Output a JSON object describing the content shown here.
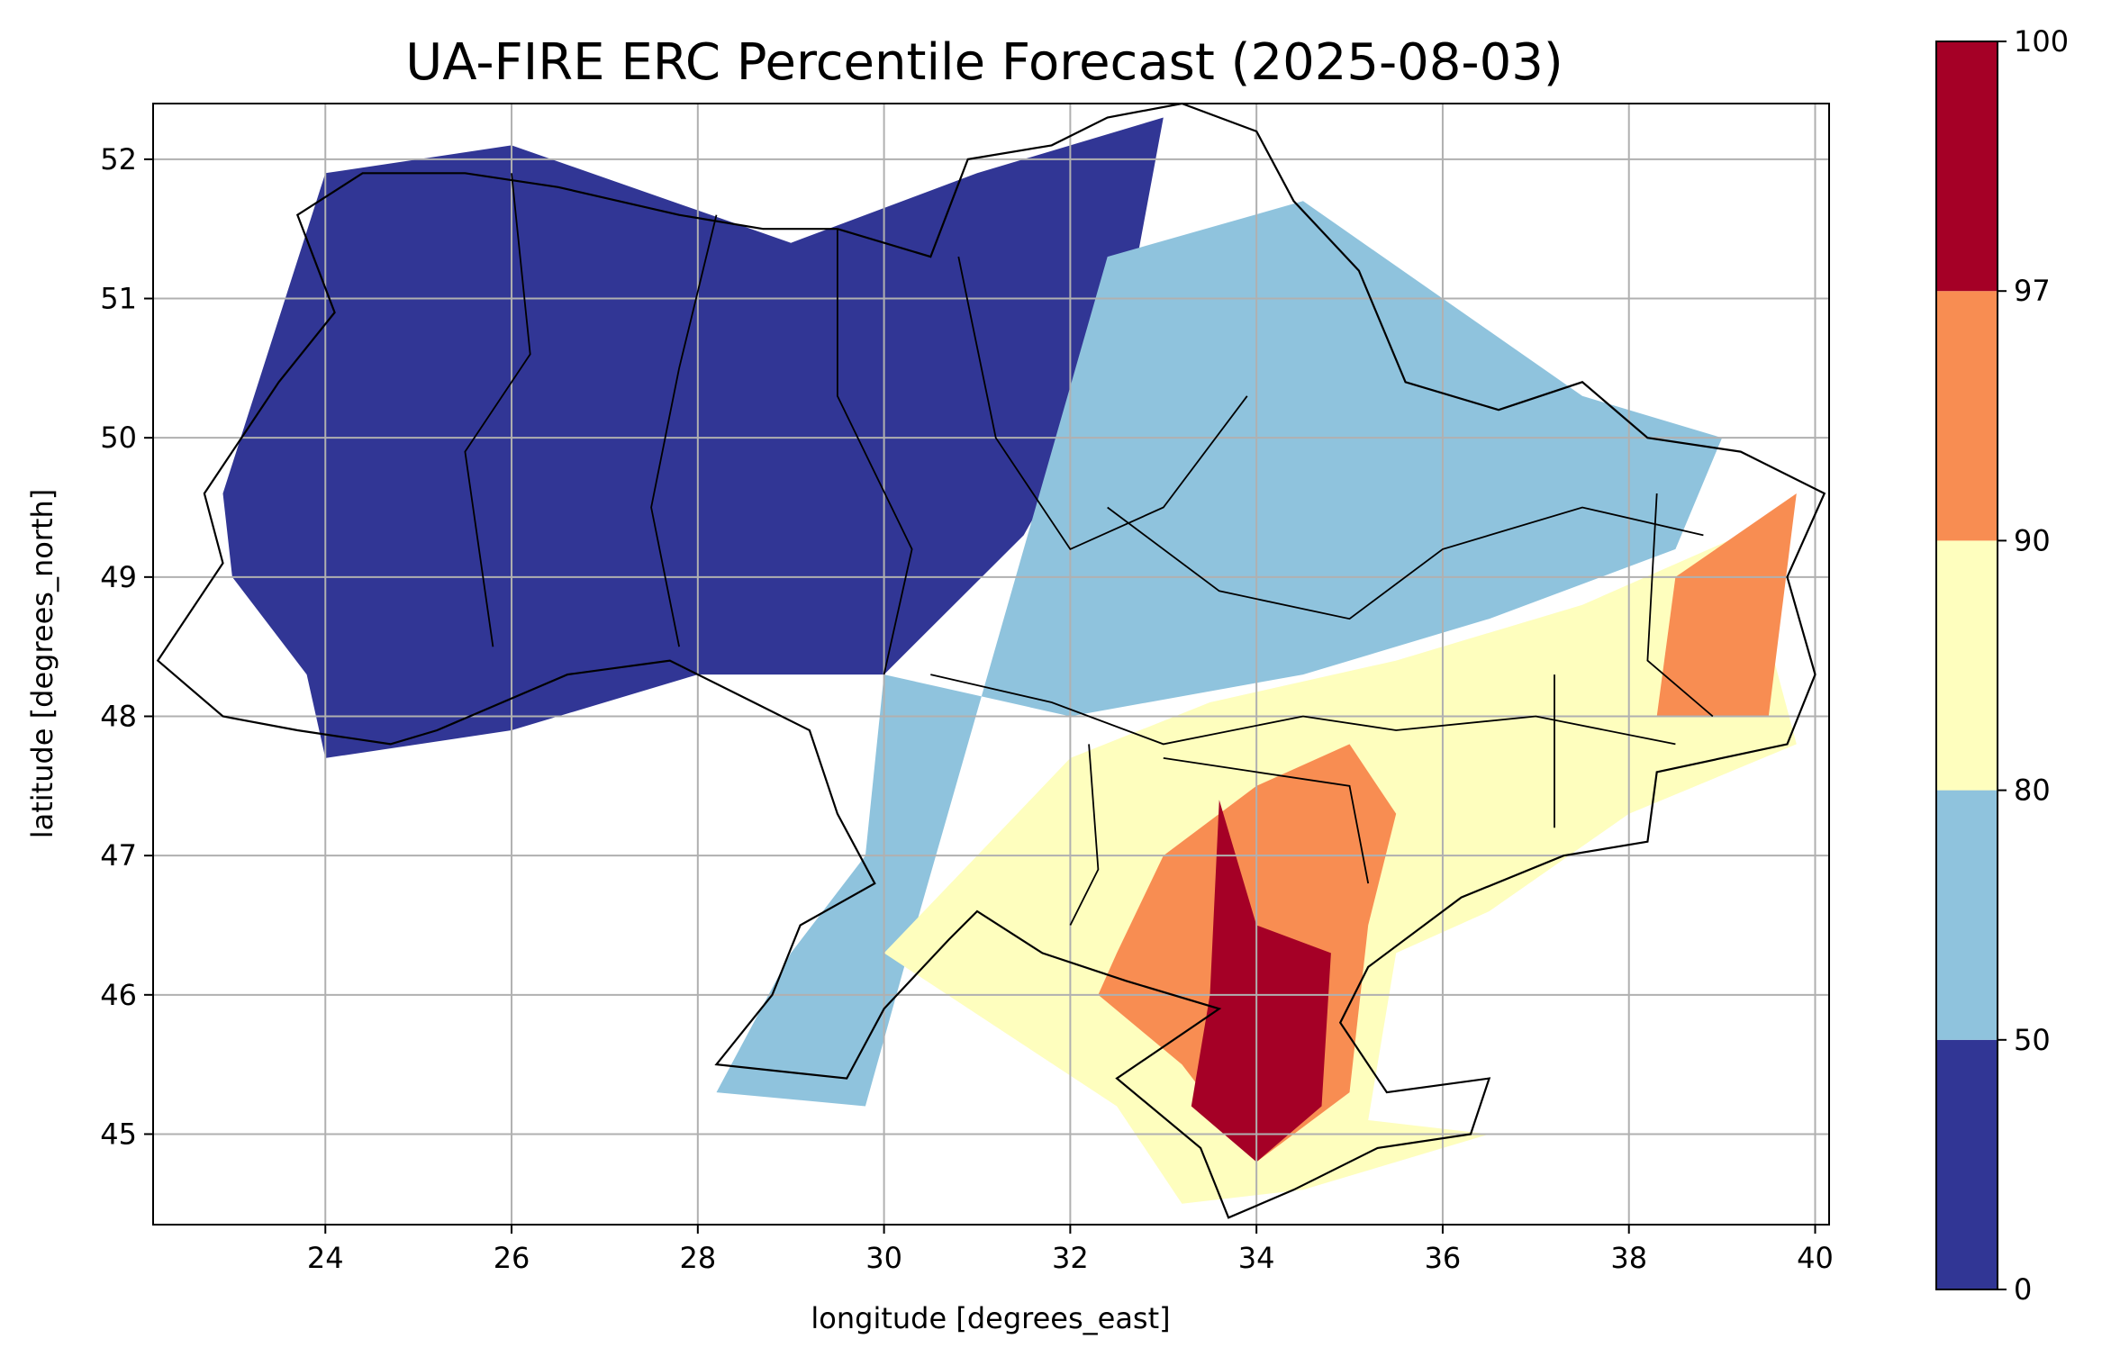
{
  "chart_data": {
    "type": "heatmap",
    "title": "UA-FIRE ERC Percentile Forecast (2025-08-03)",
    "xlabel": "longitude [degrees_east]",
    "ylabel": "latitude [degrees_north]",
    "xlim": [
      22.15,
      40.15
    ],
    "ylim": [
      44.35,
      52.4
    ],
    "xticks": [
      24,
      26,
      28,
      30,
      32,
      34,
      36,
      38,
      40
    ],
    "yticks": [
      45,
      46,
      47,
      48,
      49,
      50,
      51,
      52
    ],
    "grid": true,
    "colorbar": {
      "boundaries": [
        0,
        50,
        80,
        90,
        97,
        100
      ],
      "tick_labels": [
        "0",
        "50",
        "80",
        "90",
        "97",
        "100"
      ],
      "colors": [
        "#313695",
        "#8fc3dd",
        "#fefebe",
        "#f88d52",
        "#a50026"
      ]
    },
    "regions_by_class": [
      {
        "range": "0-50",
        "description_lon_lat": [
          [
            22.9,
            49.6
          ],
          [
            24.0,
            51.9
          ],
          [
            26.0,
            52.1
          ],
          [
            29.0,
            51.4
          ],
          [
            31.0,
            51.9
          ],
          [
            33.0,
            52.3
          ],
          [
            32.5,
            50.5
          ],
          [
            31.5,
            49.3
          ],
          [
            30.0,
            48.3
          ],
          [
            28.0,
            48.3
          ],
          [
            26.0,
            47.9
          ],
          [
            24.0,
            47.7
          ],
          [
            23.8,
            48.3
          ],
          [
            23.0,
            49.0
          ]
        ]
      },
      {
        "range": "50-80",
        "description_lon_lat": [
          [
            32.4,
            51.3
          ],
          [
            34.5,
            51.7
          ],
          [
            36.0,
            51.0
          ],
          [
            37.5,
            50.3
          ],
          [
            39.0,
            50.0
          ],
          [
            38.5,
            49.2
          ],
          [
            36.5,
            48.7
          ],
          [
            34.5,
            48.3
          ],
          [
            32.0,
            48.0
          ],
          [
            30.0,
            48.3
          ],
          [
            29.8,
            47.0
          ],
          [
            29.0,
            46.3
          ],
          [
            28.2,
            45.3
          ],
          [
            29.8,
            45.2
          ],
          [
            30.3,
            46.4
          ]
        ]
      },
      {
        "range": "80-90",
        "description_lon_lat": [
          [
            30.0,
            46.3
          ],
          [
            31.0,
            47.0
          ],
          [
            32.0,
            47.7
          ],
          [
            33.5,
            48.1
          ],
          [
            35.5,
            48.4
          ],
          [
            37.5,
            48.8
          ],
          [
            39.2,
            49.3
          ],
          [
            39.8,
            47.8
          ],
          [
            38.0,
            47.3
          ],
          [
            36.5,
            46.6
          ],
          [
            35.5,
            46.3
          ],
          [
            35.2,
            45.1
          ],
          [
            36.5,
            45.0
          ],
          [
            34.5,
            44.6
          ],
          [
            33.2,
            44.5
          ],
          [
            32.5,
            45.2
          ]
        ]
      },
      {
        "range": "90-97",
        "description_lon_lat": [
          [
            32.5,
            46.3
          ],
          [
            33.0,
            47.0
          ],
          [
            34.0,
            47.5
          ],
          [
            35.0,
            47.8
          ],
          [
            35.5,
            47.3
          ],
          [
            35.2,
            46.5
          ],
          [
            35.0,
            45.3
          ],
          [
            34.0,
            44.8
          ],
          [
            33.2,
            45.5
          ],
          [
            32.3,
            46.0
          ],
          [
            38.5,
            49.0
          ],
          [
            39.8,
            49.6
          ],
          [
            39.5,
            48.0
          ],
          [
            38.3,
            48.0
          ]
        ]
      },
      {
        "range": "97-100",
        "description_lon_lat": [
          [
            33.6,
            47.4
          ],
          [
            34.0,
            46.5
          ],
          [
            34.8,
            46.3
          ],
          [
            34.7,
            45.2
          ],
          [
            34.0,
            44.8
          ],
          [
            33.3,
            45.2
          ],
          [
            33.5,
            46.0
          ]
        ]
      }
    ]
  }
}
